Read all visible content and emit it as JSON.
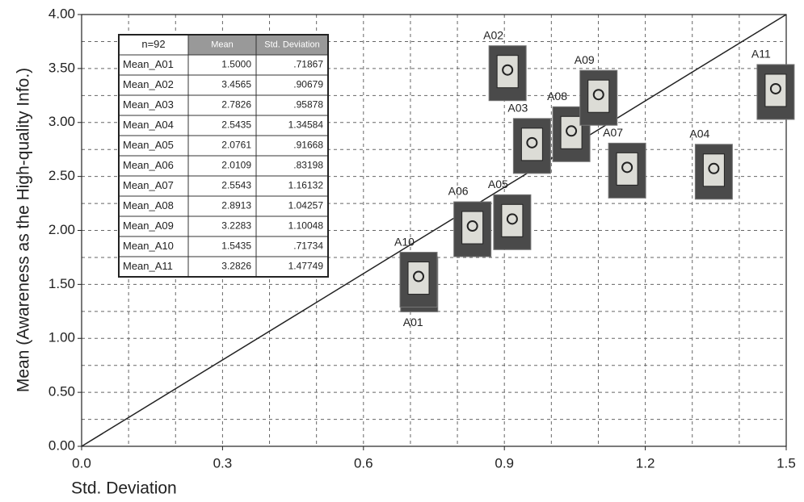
{
  "chart_data": {
    "type": "scatter",
    "x_label": "Std. Deviation",
    "y_label": "Mean (Awareness as the High-quality Info.)",
    "point_labels": [
      "A01",
      "A02",
      "A03",
      "A04",
      "A05",
      "A06",
      "A07",
      "A08",
      "A09",
      "A10",
      "A11"
    ],
    "x": [
      0.71867,
      0.90679,
      0.95878,
      1.34584,
      0.91668,
      0.83198,
      1.16132,
      1.04257,
      1.10048,
      0.71734,
      1.47749
    ],
    "values": [
      1.5,
      3.4565,
      2.7826,
      2.5435,
      2.0761,
      2.0109,
      2.5543,
      2.8913,
      3.2283,
      1.5435,
      3.2826
    ],
    "xlim": [
      0,
      1.5
    ],
    "ylim": [
      0,
      4
    ],
    "xticks": [
      {
        "value": 0,
        "label": "0.0"
      },
      {
        "value": 0.3,
        "label": "0.3"
      },
      {
        "value": 0.6,
        "label": "0.6"
      },
      {
        "value": 0.9,
        "label": "0.9"
      },
      {
        "value": 1.2,
        "label": "1.2"
      },
      {
        "value": 1.5,
        "label": "1.5"
      }
    ],
    "yticks": [
      {
        "value": 0,
        "label": "0.00"
      },
      {
        "value": 0.5,
        "label": "0.50"
      },
      {
        "value": 1,
        "label": "1.00"
      },
      {
        "value": 1.5,
        "label": "1.50"
      },
      {
        "value": 2,
        "label": "2.00"
      },
      {
        "value": 2.5,
        "label": "2.50"
      },
      {
        "value": 3,
        "label": "3.00"
      },
      {
        "value": 3.5,
        "label": "3.50"
      },
      {
        "value": 4,
        "label": "4.00"
      }
    ],
    "xgrid": [
      0.1,
      0.2,
      0.3,
      0.4,
      0.5,
      0.6,
      0.7,
      0.8,
      0.9,
      1.0,
      1.1,
      1.2,
      1.3,
      1.4
    ],
    "ygrid": [
      0.25,
      0.5,
      0.75,
      1.0,
      1.25,
      1.5,
      1.75,
      2.0,
      2.25,
      2.5,
      2.75,
      3.0,
      3.25,
      3.5,
      3.75
    ],
    "grid": true,
    "reference_line": {
      "x": [
        0,
        1.5
      ],
      "y": [
        0,
        4
      ]
    },
    "table": {
      "header": [
        "n=92",
        "Mean",
        "Std. Deviation"
      ],
      "rows": [
        [
          "Mean_A01",
          "1.5000",
          ".71867"
        ],
        [
          "Mean_A02",
          "3.4565",
          ".90679"
        ],
        [
          "Mean_A03",
          "2.7826",
          ".95878"
        ],
        [
          "Mean_A04",
          "2.5435",
          "1.34584"
        ],
        [
          "Mean_A05",
          "2.0761",
          ".91668"
        ],
        [
          "Mean_A06",
          "2.0109",
          ".83198"
        ],
        [
          "Mean_A07",
          "2.5543",
          "1.16132"
        ],
        [
          "Mean_A08",
          "2.8913",
          "1.04257"
        ],
        [
          "Mean_A09",
          "3.2283",
          "1.10048"
        ],
        [
          "Mean_A10",
          "1.5435",
          ".71734"
        ],
        [
          "Mean_A11",
          "3.2826",
          "1.47749"
        ]
      ]
    }
  }
}
